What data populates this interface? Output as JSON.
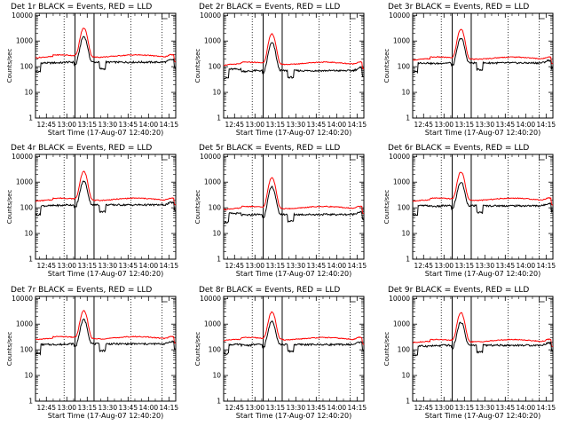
{
  "chart_data": {
    "type": "line",
    "shared": {
      "xlabel": "Start Time (17-Aug-07 12:40:20)",
      "ylabel": "Counts/sec",
      "xtick_labels": [
        "12:45",
        "13:00",
        "13:15",
        "13:30",
        "13:45",
        "14:00",
        "14:15"
      ],
      "xtick_minutes": [
        5,
        20,
        35,
        50,
        65,
        80,
        95
      ],
      "xlim_minutes": [
        -3,
        100
      ],
      "ytick_labels": [
        "1",
        "10",
        "100",
        "1000",
        "10000"
      ],
      "ytick_values": [
        1,
        10,
        100,
        1000,
        10000
      ],
      "ylim": [
        1,
        12000
      ],
      "yscale": "log",
      "series_colors": {
        "events": "#000000",
        "lld": "#ff0000"
      },
      "dotted_lines_minutes": [
        18,
        67,
        90
      ],
      "solid_lines_minutes": [
        26,
        40
      ],
      "grid": false
    },
    "panels": [
      {
        "title": "Det 1r BLACK = Events, RED = LLD",
        "base_events": 150,
        "base_lld": 230,
        "peak_events": 1500,
        "peak_lld": 3200,
        "early_events": 70
      },
      {
        "title": "Det 2r BLACK = Events, RED = LLD",
        "base_events": 70,
        "base_lld": 120,
        "peak_events": 850,
        "peak_lld": 1900,
        "early_events": 40
      },
      {
        "title": "Det 3r BLACK = Events, RED = LLD",
        "base_events": 140,
        "base_lld": 190,
        "peak_events": 1300,
        "peak_lld": 2900,
        "early_events": 70
      },
      {
        "title": "Det 4r BLACK = Events, RED = LLD",
        "base_events": 130,
        "base_lld": 190,
        "peak_events": 1100,
        "peak_lld": 2600,
        "early_events": 60
      },
      {
        "title": "Det 5r BLACK = Events, RED = LLD",
        "base_events": 55,
        "base_lld": 90,
        "peak_events": 650,
        "peak_lld": 1500,
        "early_events": 30
      },
      {
        "title": "Det 6r BLACK = Events, RED = LLD",
        "base_events": 120,
        "base_lld": 190,
        "peak_events": 1000,
        "peak_lld": 2500,
        "early_events": 60
      },
      {
        "title": "Det 7r BLACK = Events, RED = LLD",
        "base_events": 170,
        "base_lld": 260,
        "peak_events": 1500,
        "peak_lld": 3300,
        "early_events": 80
      },
      {
        "title": "Det 8r BLACK = Events, RED = LLD",
        "base_events": 160,
        "base_lld": 240,
        "peak_events": 1300,
        "peak_lld": 3000,
        "early_events": 80
      },
      {
        "title": "Det 9r BLACK = Events, RED = LLD",
        "base_events": 150,
        "base_lld": 200,
        "peak_events": 1200,
        "peak_lld": 2800,
        "early_events": 70
      }
    ]
  }
}
